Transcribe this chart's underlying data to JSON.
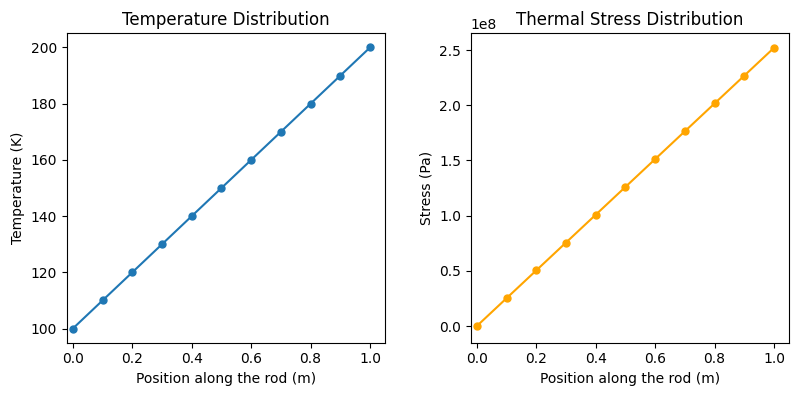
{
  "x": [
    0.0,
    0.1,
    0.2,
    0.3,
    0.4,
    0.5,
    0.6,
    0.7,
    0.8,
    0.9,
    1.0
  ],
  "temperature": [
    100,
    110,
    120,
    130,
    140,
    150,
    160,
    170,
    180,
    190,
    200
  ],
  "stress": [
    0.0,
    25200000.0,
    50400000.0,
    75600000.0,
    100800000.0,
    126000000.0,
    151200000.0,
    176400000.0,
    201600000.0,
    226800000.0,
    252000000.0
  ],
  "temp_color": "#1f77b4",
  "stress_color": "#FFA500",
  "temp_title": "Temperature Distribution",
  "stress_title": "Thermal Stress Distribution",
  "temp_xlabel": "Position along the rod (m)",
  "stress_xlabel": "Position along the rod (m)",
  "temp_ylabel": "Temperature (K)",
  "stress_ylabel": "Stress (Pa)",
  "marker": "o",
  "markersize": 5,
  "linewidth": 1.5,
  "figsize": [
    8.0,
    3.97
  ],
  "dpi": 100
}
